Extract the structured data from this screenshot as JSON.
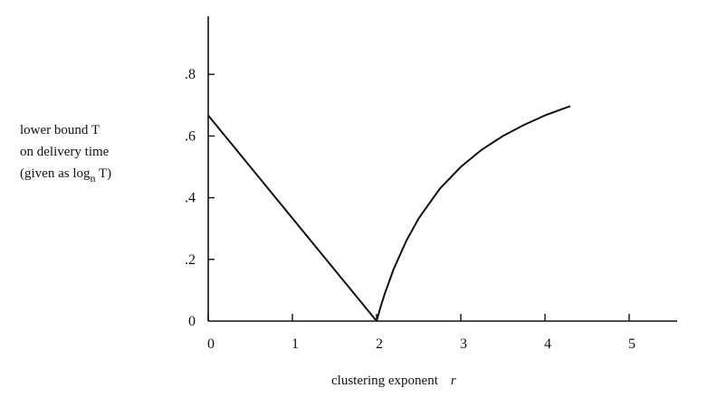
{
  "chart_data": {
    "type": "line",
    "title": "",
    "ylabel_lines": [
      "lower bound T",
      "on delivery time"
    ],
    "ylabel_paren": {
      "prefix": "(given as log",
      "subscript": "n",
      "suffix": " T)"
    },
    "xlabel": "clustering exponent",
    "xlabel_symbol": "r",
    "xlim": [
      0,
      5.5
    ],
    "ylim": [
      0,
      1.0
    ],
    "x_ticks": [
      0,
      1,
      2,
      3,
      4,
      5
    ],
    "x_tick_labels": [
      "0",
      "1",
      "2",
      "3",
      "4",
      "5"
    ],
    "y_ticks": [
      0,
      0.2,
      0.4,
      0.6,
      0.8
    ],
    "y_tick_labels": [
      "0",
      ".2",
      ".4",
      ".6",
      ".8"
    ],
    "series": [
      {
        "segment": "r < 2",
        "formula": "(2 - r) / 3",
        "x": [
          0,
          2
        ],
        "y": [
          0.667,
          0
        ]
      },
      {
        "segment": "r > 2",
        "formula": "(r - 2) / (r - 1)",
        "x": [
          2.0,
          2.05,
          2.1,
          2.2,
          2.35,
          2.5,
          2.75,
          3.0,
          3.25,
          3.5,
          3.75,
          4.0,
          4.3
        ],
        "y": [
          0.0,
          0.048,
          0.091,
          0.167,
          0.259,
          0.333,
          0.429,
          0.5,
          0.556,
          0.6,
          0.636,
          0.667,
          0.697
        ]
      }
    ],
    "grid": false,
    "legend": "none"
  }
}
